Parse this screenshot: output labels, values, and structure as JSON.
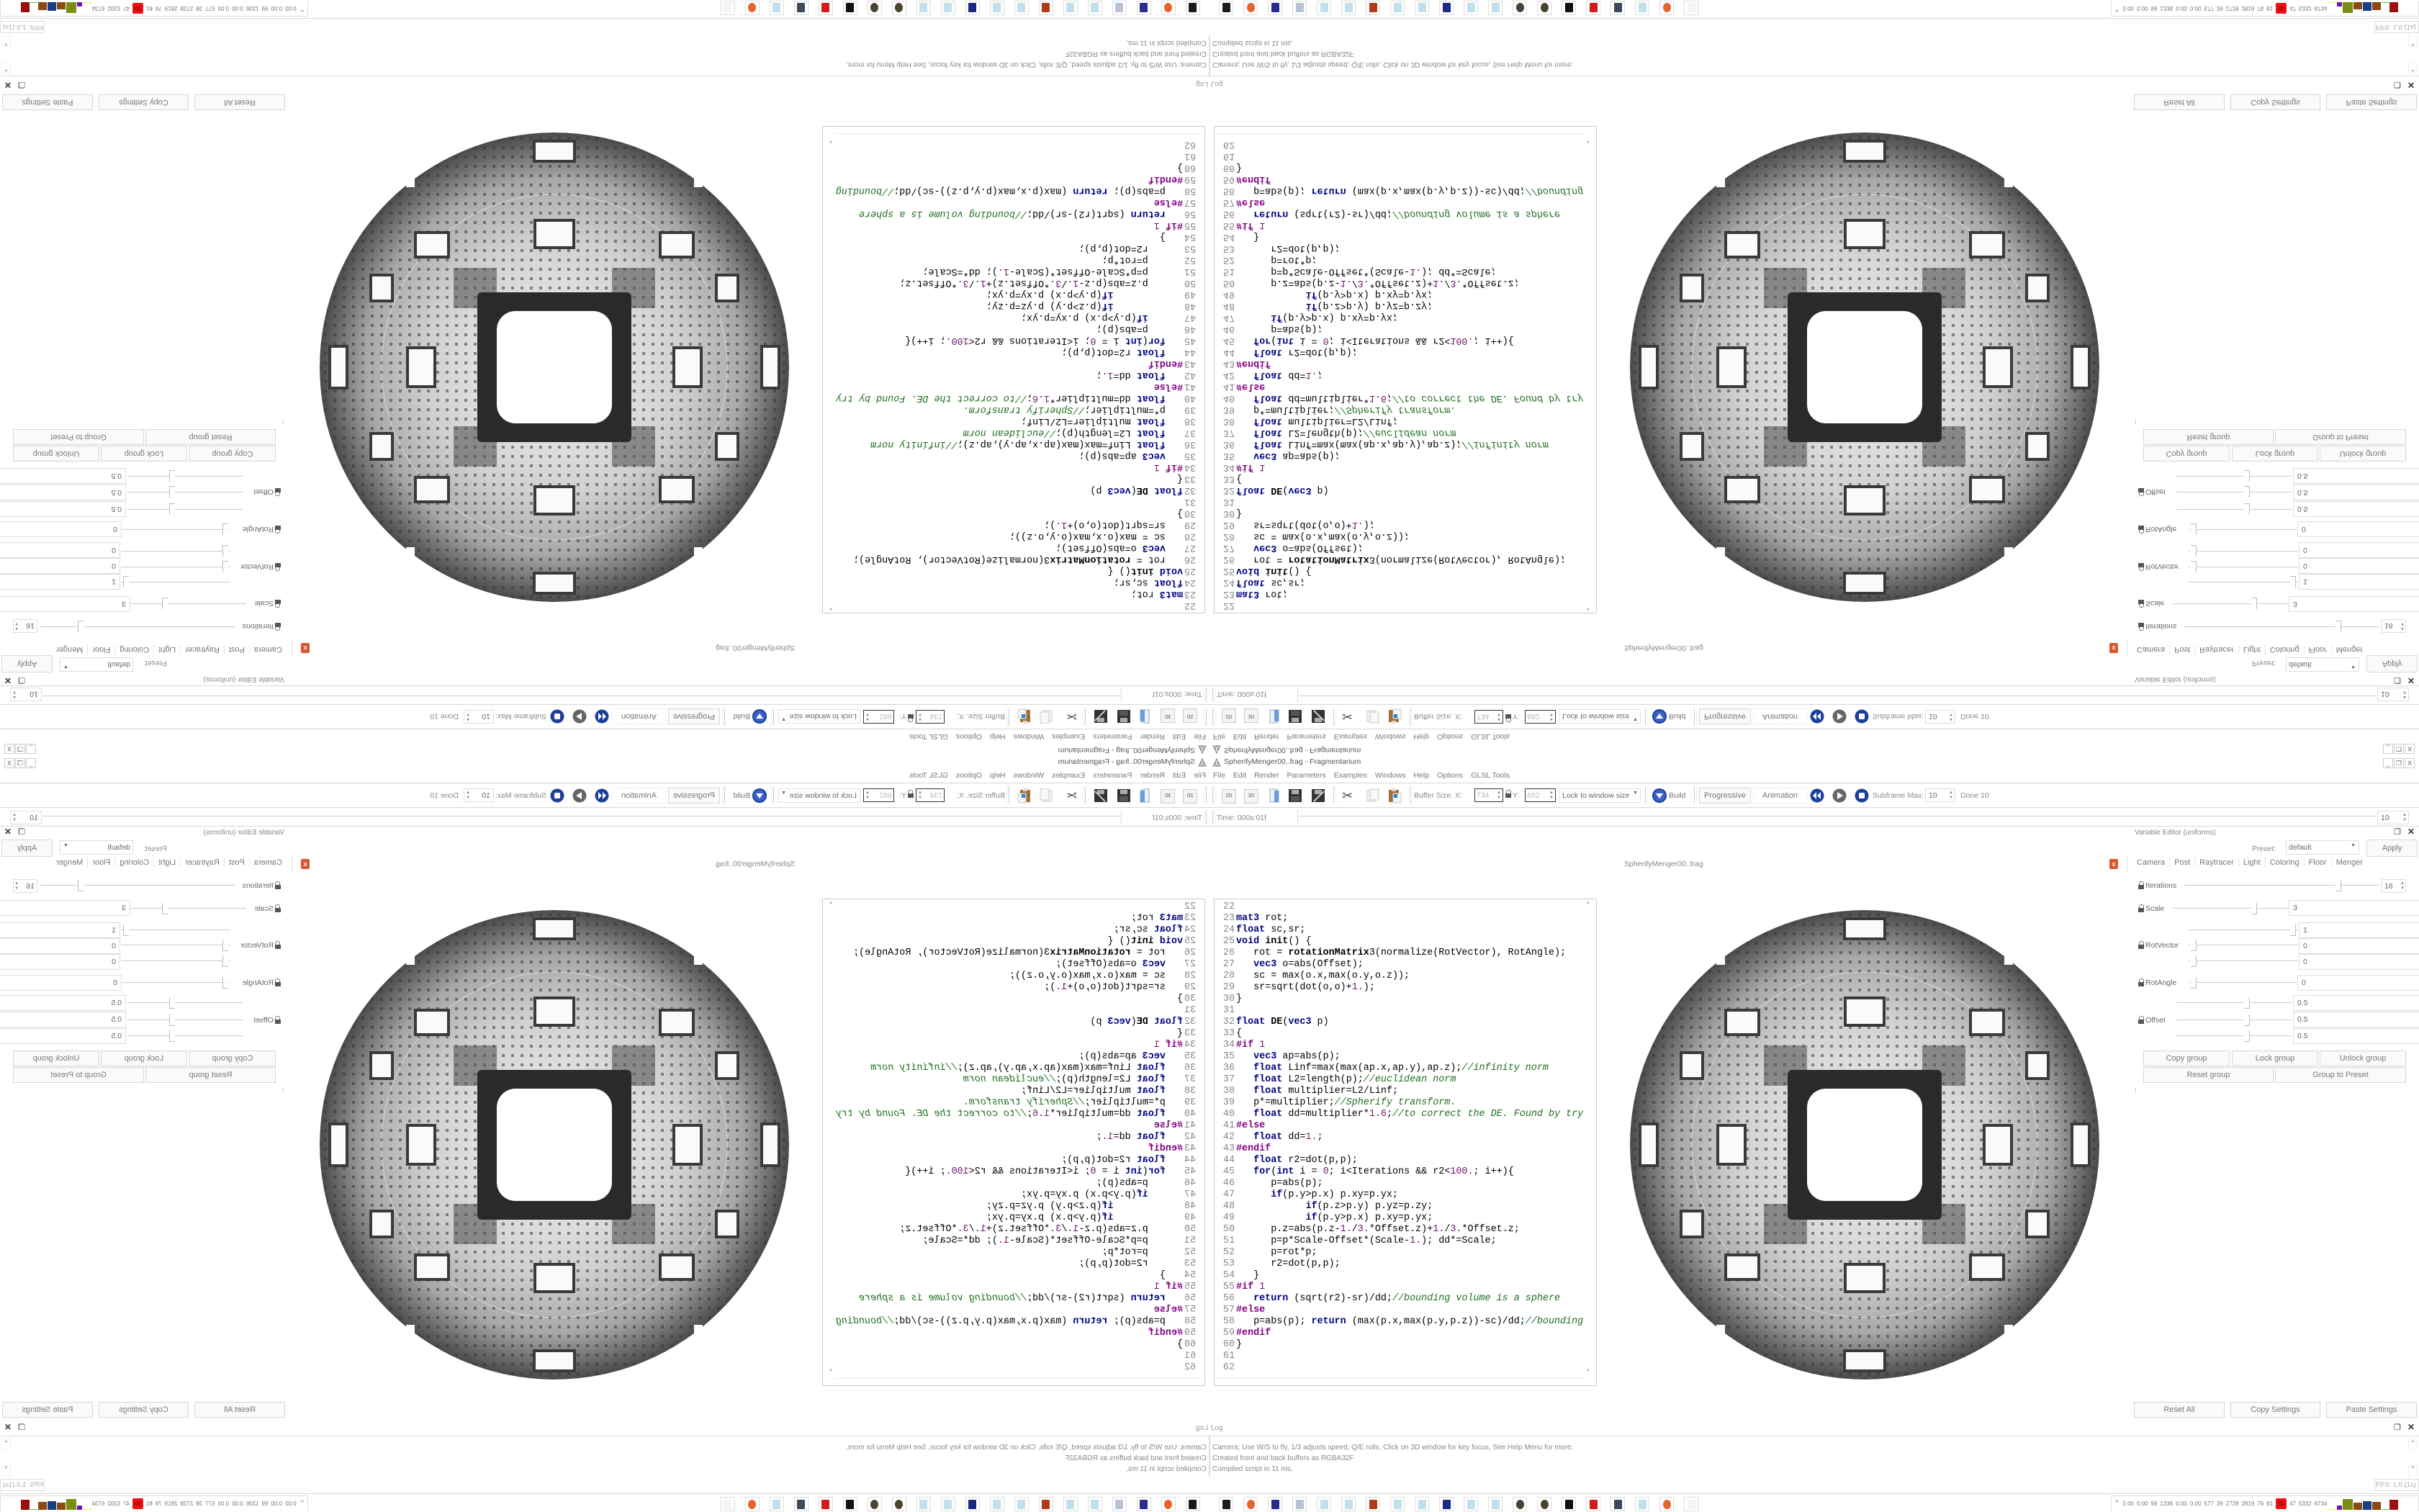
{
  "window": {
    "title": "SpherifyMenger00..frag - Fragmentarium",
    "controls": [
      "minimize-icon",
      "restore-icon",
      "close-icon"
    ]
  },
  "menu": [
    "File",
    "Edit",
    "Render",
    "Parameters",
    "Examples",
    "Windows",
    "Help",
    "Options",
    "GLSL Tools"
  ],
  "toolbar": {
    "btn_2d": "2D",
    "btn_3d": "3D",
    "buffer_size_label": "Buffer Size. X:",
    "buffer_x": "734",
    "buffer_y_label": "Y:",
    "buffer_y": "682",
    "lock_mode": "Lock to window size",
    "build_label": "Build",
    "progressive_label": "Progressive",
    "animation_label": "Animation",
    "subframe_label": "Subframe Max:",
    "subframe_value": "10",
    "done_label": "Done 10"
  },
  "timebar": {
    "time_label": "Time: 000s:01f",
    "frame_value": "10"
  },
  "editor": {
    "tab_label": "SpherifyMenger00..frag",
    "lines": [
      {
        "n": "22",
        "code": ""
      },
      {
        "n": "23",
        "code": "mat3 rot;"
      },
      {
        "n": "24",
        "code": "float sc,sr;"
      },
      {
        "n": "25",
        "code": "void init() {"
      },
      {
        "n": "26",
        "code": "   rot = rotationMatrix3(normalize(RotVector), RotAngle);"
      },
      {
        "n": "27",
        "code": "   vec3 o=abs(Offset);"
      },
      {
        "n": "28",
        "code": "   sc = max(o.x,max(o.y,o.z));"
      },
      {
        "n": "29",
        "code": "   sr=sqrt(dot(o,o)+1.);"
      },
      {
        "n": "30",
        "code": "}"
      },
      {
        "n": "31",
        "code": ""
      },
      {
        "n": "32",
        "code": "float DE(vec3 p)"
      },
      {
        "n": "33",
        "code": "{"
      },
      {
        "n": "34",
        "code": "#if 1"
      },
      {
        "n": "35",
        "code": "   vec3 ap=abs(p);"
      },
      {
        "n": "36",
        "code": "   float Linf=max(max(ap.x,ap.y),ap.z);//infinity norm"
      },
      {
        "n": "37",
        "code": "   float L2=length(p);//euclidean norm"
      },
      {
        "n": "38",
        "code": "   float multiplier=L2/Linf;"
      },
      {
        "n": "39",
        "code": "   p*=multiplier;//Spherify transform."
      },
      {
        "n": "40",
        "code": "   float dd=multiplier*1.6;//to correct the DE. Found by try"
      },
      {
        "n": "41",
        "code": "#else"
      },
      {
        "n": "42",
        "code": "   float dd=1.;"
      },
      {
        "n": "43",
        "code": "#endif"
      },
      {
        "n": "44",
        "code": "   float r2=dot(p,p);"
      },
      {
        "n": "45",
        "code": "   for(int i = 0; i<Iterations && r2<100.; i++){"
      },
      {
        "n": "46",
        "code": "      p=abs(p);"
      },
      {
        "n": "47",
        "code": "      if(p.y>p.x) p.xy=p.yx;"
      },
      {
        "n": "48",
        "code": "            if(p.z>p.y) p.yz=p.zy;"
      },
      {
        "n": "49",
        "code": "            if(p.y>p.x) p.xy=p.yx;"
      },
      {
        "n": "50",
        "code": "      p.z=abs(p.z-1./3.*Offset.z)+1./3.*Offset.z;"
      },
      {
        "n": "51",
        "code": "      p=p*Scale-Offset*(Scale-1.); dd*=Scale;"
      },
      {
        "n": "52",
        "code": "      p=rot*p;"
      },
      {
        "n": "53",
        "code": "      r2=dot(p,p);"
      },
      {
        "n": "54",
        "code": "   }"
      },
      {
        "n": "55",
        "code": "#if 1"
      },
      {
        "n": "56",
        "code": "   return (sqrt(r2)-sr)/dd;//bounding volume is a sphere"
      },
      {
        "n": "57",
        "code": "#else"
      },
      {
        "n": "58",
        "code": "   p=abs(p); return (max(p.x,max(p.y,p.z))-sc)/dd;//bounding"
      },
      {
        "n": "59",
        "code": "#endif"
      },
      {
        "n": "60",
        "code": "}"
      },
      {
        "n": "61",
        "code": ""
      },
      {
        "n": "62",
        "code": ""
      }
    ]
  },
  "variable_editor": {
    "title": "Variable Editor (uniforms)",
    "preset_label": "Preset:",
    "preset_value": "default",
    "apply_label": "Apply",
    "tabs": [
      "Camera",
      "Post",
      "Raytracer",
      "Light",
      "Coloring",
      "Floor",
      "Menger"
    ],
    "active_tab": "Menger",
    "params": {
      "iterations": {
        "label": "Iterations",
        "value": "16",
        "slider_fraction": 0.8
      },
      "scale": {
        "label": "Scale",
        "value": "3",
        "slider_fraction": 0.72
      },
      "rotvector": {
        "label": "RotVector",
        "values": [
          "1",
          "0",
          "0"
        ],
        "slider_fractions": [
          0.98,
          0.02,
          0.02
        ]
      },
      "rotangle": {
        "label": "RotAngle",
        "value": "0",
        "slider_fraction": 0.02
      },
      "offset": {
        "label": "Offset",
        "values": [
          "0.5",
          "0.5",
          "0.5"
        ],
        "slider_fractions": [
          0.62,
          0.62,
          0.62
        ]
      }
    },
    "group_buttons": [
      "Copy group",
      "Lock group",
      "Unlock group",
      "Reset group",
      "Group to Preset"
    ],
    "settings_buttons": [
      "Reset All",
      "Copy Settings",
      "Paste Settings"
    ]
  },
  "log": {
    "title": "Log",
    "lines": [
      "Camera; Use W/S to fly, 1/3 adjusts speed, Q/E rolls, Click on 3D window for key focus, See Help Menu for more,",
      "Created front and back buffers as RGBA32F",
      "Compiled script in 11 ms,"
    ],
    "fps": "FPS: 1.0 (1s)"
  },
  "taskbar": {
    "icons": [
      "terminal-icon",
      "firefox-icon",
      "floppy-64-icon",
      "scroll-icon",
      "notepad-icon",
      "notepad-icon",
      "bug-icon",
      "notepad-icon",
      "notepad-icon",
      "jpeg-viewer-icon",
      "notepad-icon",
      "notepad-icon",
      "gear-icon",
      "gear-icon",
      "app-bw-icon",
      "red-app-icon",
      "monitor-icon",
      "notepad-icon",
      "firefox-icon",
      "fragmentarium-icon"
    ],
    "tray_values": [
      "0.00",
      "0.00",
      "99",
      "1336",
      "0.00",
      "0.00",
      "577",
      "39",
      "2728",
      "2819",
      "76",
      "81",
      "50",
      "47",
      "5332",
      "6734"
    ],
    "tray_highlight_index": 12,
    "tray_highlight_color": "#ee1111"
  },
  "colors": {
    "accent_blue": "#1b3f9a",
    "close_red": "#d9572b",
    "comment_green": "#2e8b2e",
    "keyword_navy": "#000080"
  }
}
